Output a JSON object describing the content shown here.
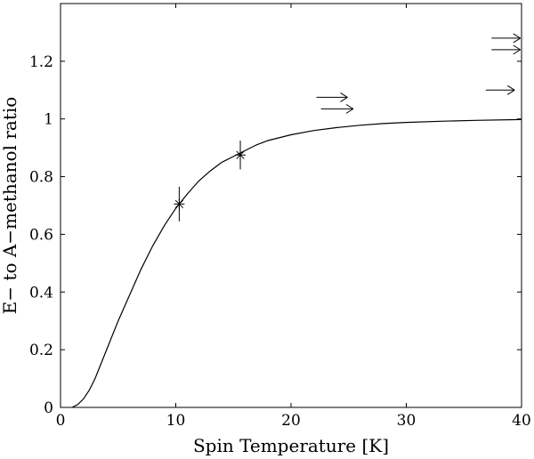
{
  "chart_data": {
    "type": "line",
    "xlabel": "Spin Temperature [K]",
    "ylabel": "E− to A−methanol ratio",
    "xlim": [
      0,
      40
    ],
    "ylim": [
      0,
      1.4
    ],
    "xticks": [
      0,
      10,
      20,
      30,
      40
    ],
    "yticks": [
      0,
      0.2,
      0.4,
      0.6,
      0.8,
      1,
      1.2
    ],
    "xtick_labels": [
      "0",
      "10",
      "20",
      "30",
      "40"
    ],
    "ytick_labels": [
      "0",
      "0.2",
      "0.4",
      "0.6",
      "0.8",
      "1",
      "1.2"
    ],
    "grid": false,
    "legend": "none",
    "series": [
      {
        "x": [
          1,
          1.5,
          2,
          2.5,
          3,
          3.5,
          4,
          5,
          6,
          7,
          8,
          9,
          10,
          11,
          12,
          13,
          14,
          15,
          16,
          17,
          18,
          20,
          22,
          24,
          26,
          28,
          30,
          33,
          36,
          40
        ],
        "y": [
          0.0,
          0.01,
          0.03,
          0.06,
          0.1,
          0.15,
          0.2,
          0.3,
          0.39,
          0.48,
          0.56,
          0.63,
          0.69,
          0.74,
          0.785,
          0.82,
          0.85,
          0.87,
          0.89,
          0.91,
          0.925,
          0.945,
          0.96,
          0.97,
          0.978,
          0.984,
          0.988,
          0.992,
          0.995,
          0.998
        ]
      }
    ],
    "measurements": [
      {
        "x": 10.3,
        "y": 0.705,
        "yerr_low": 0.645,
        "yerr_high": 0.765,
        "marker": "asterisk"
      },
      {
        "x": 15.6,
        "y": 0.875,
        "yerr_low": 0.825,
        "yerr_high": 0.925,
        "marker": "asterisk"
      }
    ],
    "lower_limit_arrows": [
      {
        "x_start": 22.2,
        "x_end": 24.9,
        "y": 1.075
      },
      {
        "x_start": 22.6,
        "x_end": 25.4,
        "y": 1.035
      },
      {
        "x_start": 36.9,
        "x_end": 39.4,
        "y": 1.1
      },
      {
        "x_start": 37.4,
        "x_end": 39.9,
        "y": 1.24
      },
      {
        "x_start": 37.4,
        "x_end": 39.9,
        "y": 1.28
      }
    ]
  }
}
